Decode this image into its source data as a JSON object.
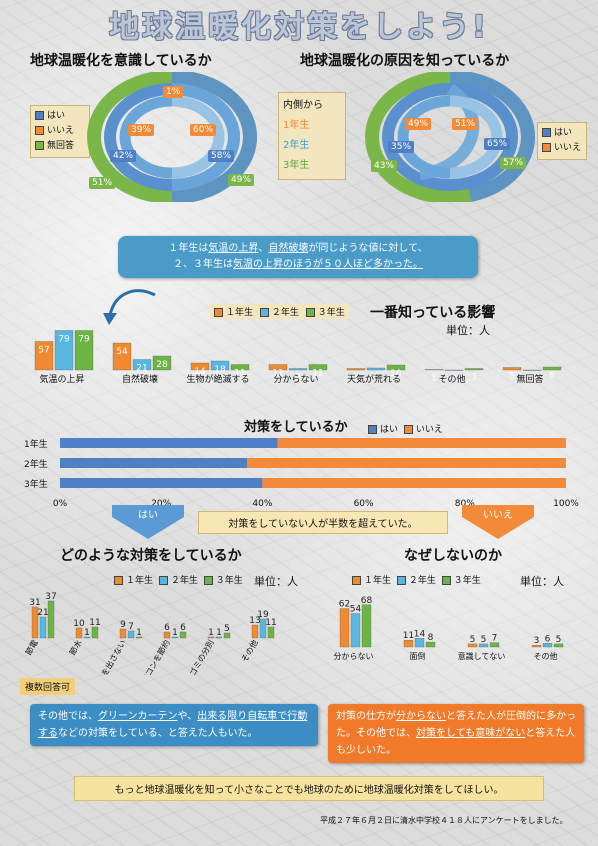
{
  "title": "地球温暖化対策をしよう!",
  "section1": {
    "heading": "地球温暖化を意識しているか",
    "legend": [
      "はい",
      "いいえ",
      "無回答"
    ],
    "labels": {
      "inner_yes": "60%",
      "inner_no": "39%",
      "inner_na": "1%",
      "mid_yes": "58%",
      "mid_no": "42%",
      "outer_yes": "49%",
      "outer_no": "51%"
    }
  },
  "grade_legend": {
    "title": "内側から",
    "g1": "1年生",
    "g2": "2年生",
    "g3": "3年生"
  },
  "section2": {
    "heading": "地球温暖化の原因を知っているか",
    "legend": [
      "はい",
      "いいえ"
    ],
    "labels": {
      "inner_yes": "51%",
      "inner_no": "49%",
      "mid_yes": "65%",
      "mid_no": "35%",
      "outer_yes": "57%",
      "outer_no": "43%"
    }
  },
  "bubble1": {
    "line1_a": "１年生は",
    "line1_b": "気温の上昇",
    "line1_c": "、",
    "line1_d": "自然破壊",
    "line1_e": "が同じような値に対して、",
    "line2_a": "２、３年生は",
    "line2_b": "気温の上昇のほうが",
    "line2_c": "５０",
    "line2_d": "人ほど多かった。"
  },
  "impact": {
    "heading": "一番知っている影響",
    "unit": "単位：人",
    "legend": [
      "１年生",
      "２年生",
      "３年生"
    ]
  },
  "chart_impact": {
    "type": "bar",
    "categories": [
      "気温の上昇",
      "自然破壊",
      "生物が絶滅する",
      "分からない",
      "天気が荒れる",
      "その他",
      "無回答"
    ],
    "series": [
      {
        "name": "１年生",
        "values": [
          57,
          54,
          14,
          11,
          3,
          1,
          5
        ]
      },
      {
        "name": "２年生",
        "values": [
          79,
          21,
          18,
          3,
          4,
          0,
          0
        ]
      },
      {
        "name": "３年生",
        "values": [
          79,
          28,
          11,
          11,
          10,
          3,
          6
        ]
      }
    ]
  },
  "measures_heading": "対策をしているか",
  "measures_legend": [
    "はい",
    "いいえ"
  ],
  "chart_measures": {
    "type": "bar",
    "orientation": "horizontal-stacked",
    "categories": [
      "1年生",
      "2年生",
      "3年生"
    ],
    "series": [
      {
        "name": "はい",
        "values": [
          43,
          37,
          40
        ]
      },
      {
        "name": "いいえ",
        "values": [
          57,
          63,
          60
        ]
      }
    ],
    "ticks": [
      "0%",
      "20%",
      "40%",
      "60%",
      "80%",
      "100%"
    ]
  },
  "arrows": {
    "yes": "はい",
    "no": "いいえ"
  },
  "mid_note": "対策をしていない人が半数を超えていた。",
  "what": {
    "heading": "どのような対策をしているか",
    "legend": [
      "１年生",
      "２年生",
      "３年生"
    ],
    "unit": "単位：人",
    "multi": "複数回答可"
  },
  "chart_what": {
    "type": "bar",
    "categories": [
      "節電",
      "節水",
      "ゴミを出さない",
      "エアコンを節約",
      "ゴミの分別",
      "その他"
    ],
    "series": [
      {
        "name": "１年生",
        "values": [
          31,
          10,
          9,
          6,
          1,
          13
        ]
      },
      {
        "name": "２年生",
        "values": [
          21,
          1,
          7,
          1,
          1,
          19
        ]
      },
      {
        "name": "３年生",
        "values": [
          37,
          11,
          1,
          6,
          5,
          11
        ]
      }
    ]
  },
  "why": {
    "heading": "なぜしないのか",
    "legend": [
      "１年生",
      "２年生",
      "３年生"
    ],
    "unit": "単位：人"
  },
  "chart_why": {
    "type": "bar",
    "categories": [
      "分からない",
      "面倒",
      "意識してない",
      "その他"
    ],
    "series": [
      {
        "name": "１年生",
        "values": [
          62,
          11,
          5,
          3
        ]
      },
      {
        "name": "２年生",
        "values": [
          54,
          14,
          5,
          6
        ]
      },
      {
        "name": "３年生",
        "values": [
          68,
          8,
          7,
          5
        ]
      }
    ]
  },
  "note_left": {
    "a": "その他では、",
    "b": "グリーンカーテン",
    "c": "や、",
    "d": "出来る限り自転車で行動する",
    "e": "などの対策をしている、と答えた人もいた。"
  },
  "note_right": {
    "a": "対策の仕方が",
    "b": "分からない",
    "c": "と答えた人が圧倒的に多かった。その他では、",
    "d": "対策をしても意味がない",
    "e": "と答えた人も少しいた。"
  },
  "bottom_note": "もっと地球温暖化を知って小さなことでも地球のために地球温暖化対策をしてほしい。",
  "footer": "平成２７年６月２日に清水中学校４１８人にアンケートをしました。",
  "colors": {
    "yes": "#4f7fc4",
    "no": "#f28a3a",
    "na": "#7ab648",
    "g1": "#f08a30",
    "g2": "#58b7df",
    "g3": "#6cb545",
    "ring1": "#7ab648",
    "ring2": "#5b90cf",
    "ring3": "#6aa7d8"
  }
}
